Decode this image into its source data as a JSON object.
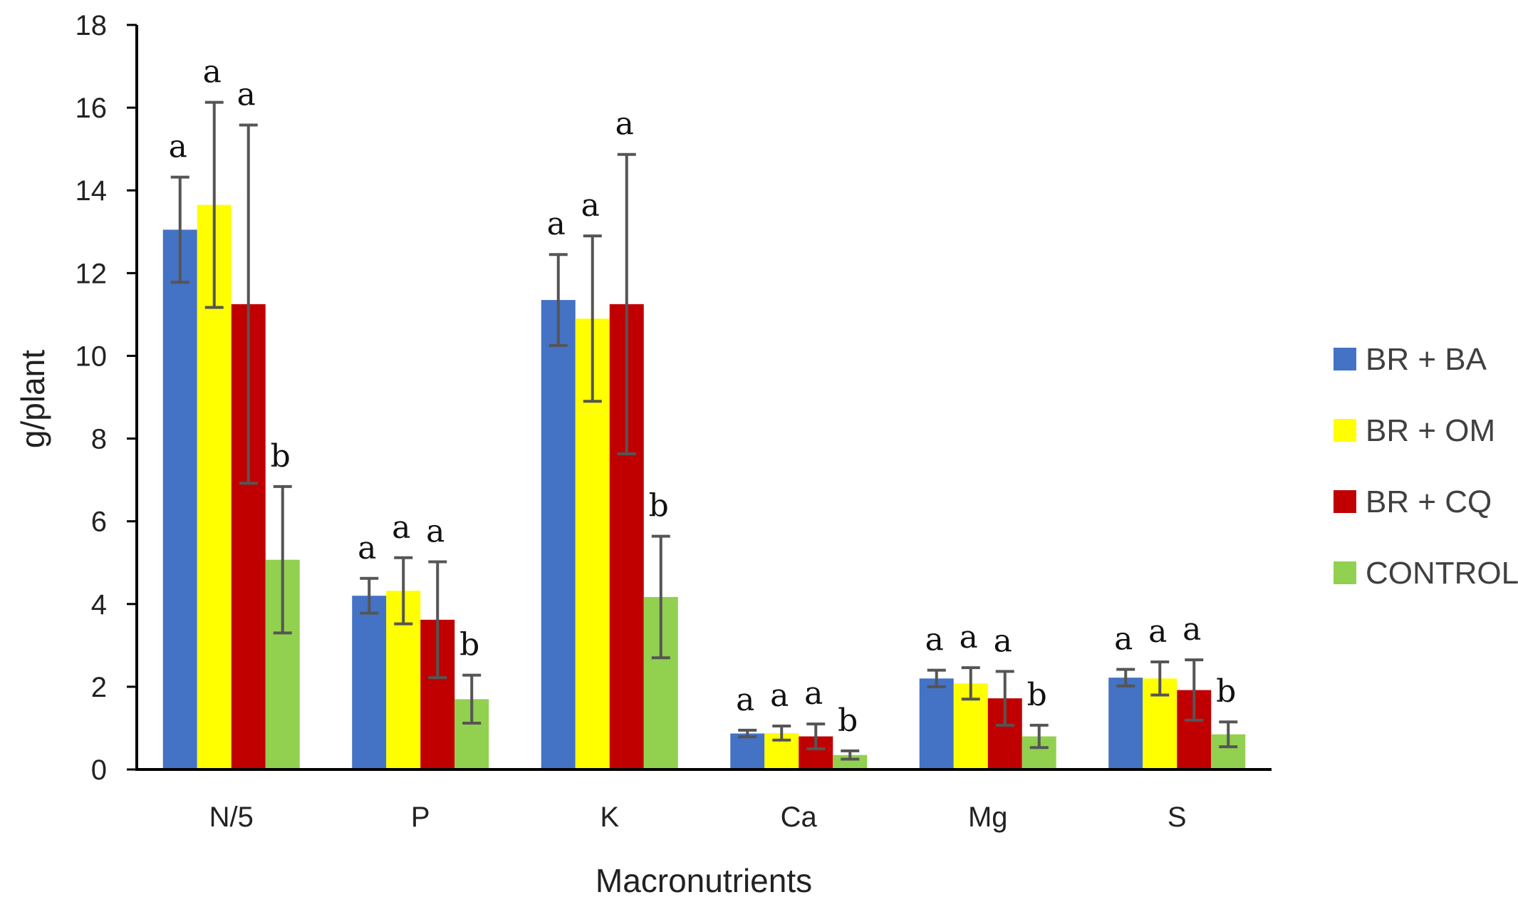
{
  "chart_data": {
    "type": "bar",
    "title": "",
    "xlabel": "Macronutrients",
    "ylabel": "g/plant",
    "ylim": [
      0,
      18
    ],
    "yticks": [
      0,
      2,
      4,
      6,
      8,
      10,
      12,
      14,
      16,
      18
    ],
    "categories": [
      "N/5",
      "P",
      "K",
      "Ca",
      "Mg",
      "S"
    ],
    "legend_position": "right",
    "series": [
      {
        "name": "BR + BA",
        "color": "#4472C4",
        "values": [
          13.05,
          4.2,
          11.35,
          0.87,
          2.2,
          2.22
        ],
        "errors": [
          1.27,
          0.42,
          1.1,
          0.08,
          0.2,
          0.2
        ],
        "labels": [
          "a",
          "a",
          "a",
          "a",
          "a",
          "a"
        ]
      },
      {
        "name": "BR + OM",
        "color": "#FFFF00",
        "values": [
          13.65,
          4.32,
          10.9,
          0.88,
          2.08,
          2.2
        ],
        "errors": [
          2.48,
          0.8,
          2.0,
          0.17,
          0.38,
          0.4
        ],
        "labels": [
          "a",
          "a",
          "a",
          "a",
          "a",
          "a"
        ]
      },
      {
        "name": "BR + CQ",
        "color": "#C00000",
        "values": [
          11.25,
          3.62,
          11.25,
          0.8,
          1.72,
          1.92
        ],
        "errors": [
          4.33,
          1.4,
          3.62,
          0.3,
          0.65,
          0.73
        ],
        "labels": [
          "a",
          "a",
          "a",
          "a",
          "a",
          "a"
        ]
      },
      {
        "name": "CONTROL",
        "color": "#92D050",
        "values": [
          5.07,
          1.7,
          4.17,
          0.35,
          0.8,
          0.85
        ],
        "errors": [
          1.77,
          0.58,
          1.47,
          0.1,
          0.27,
          0.3
        ],
        "labels": [
          "b",
          "b",
          "b",
          "b",
          "b",
          "b"
        ]
      }
    ]
  }
}
